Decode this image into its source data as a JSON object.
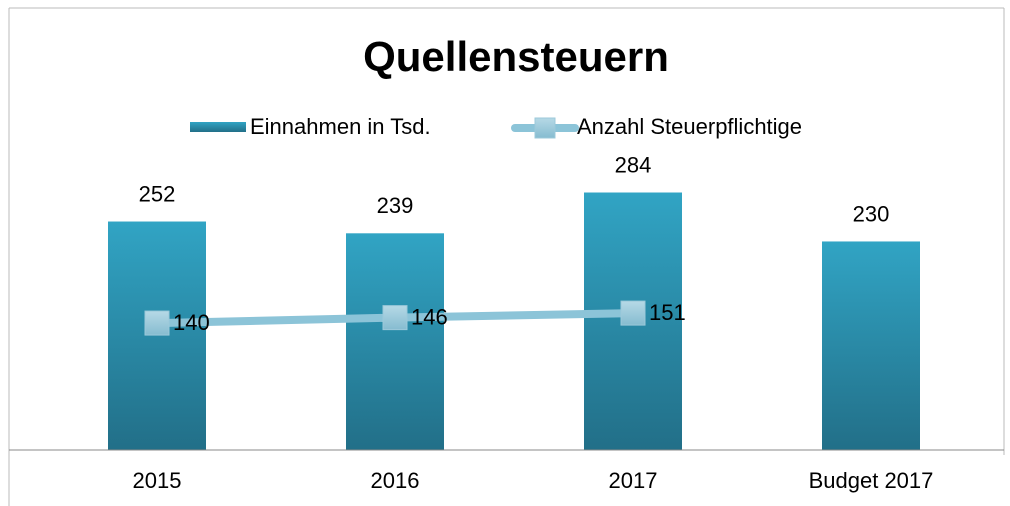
{
  "chart_data": {
    "type": "bar+line",
    "title": "Quellensteuern",
    "categories": [
      "2015",
      "2016",
      "2017",
      "Budget 2017"
    ],
    "series": [
      {
        "name": "Einnahmen in Tsd.",
        "type": "bar",
        "color": "#2e9ab8",
        "values": [
          252,
          239,
          284,
          230
        ]
      },
      {
        "name": "Anzahl Steuerpflichtige",
        "type": "line",
        "color": "#8cc4d8",
        "values": [
          140,
          146,
          151,
          null
        ]
      }
    ],
    "ylim": [
      0,
      300
    ],
    "grid": false,
    "legend": "top"
  }
}
